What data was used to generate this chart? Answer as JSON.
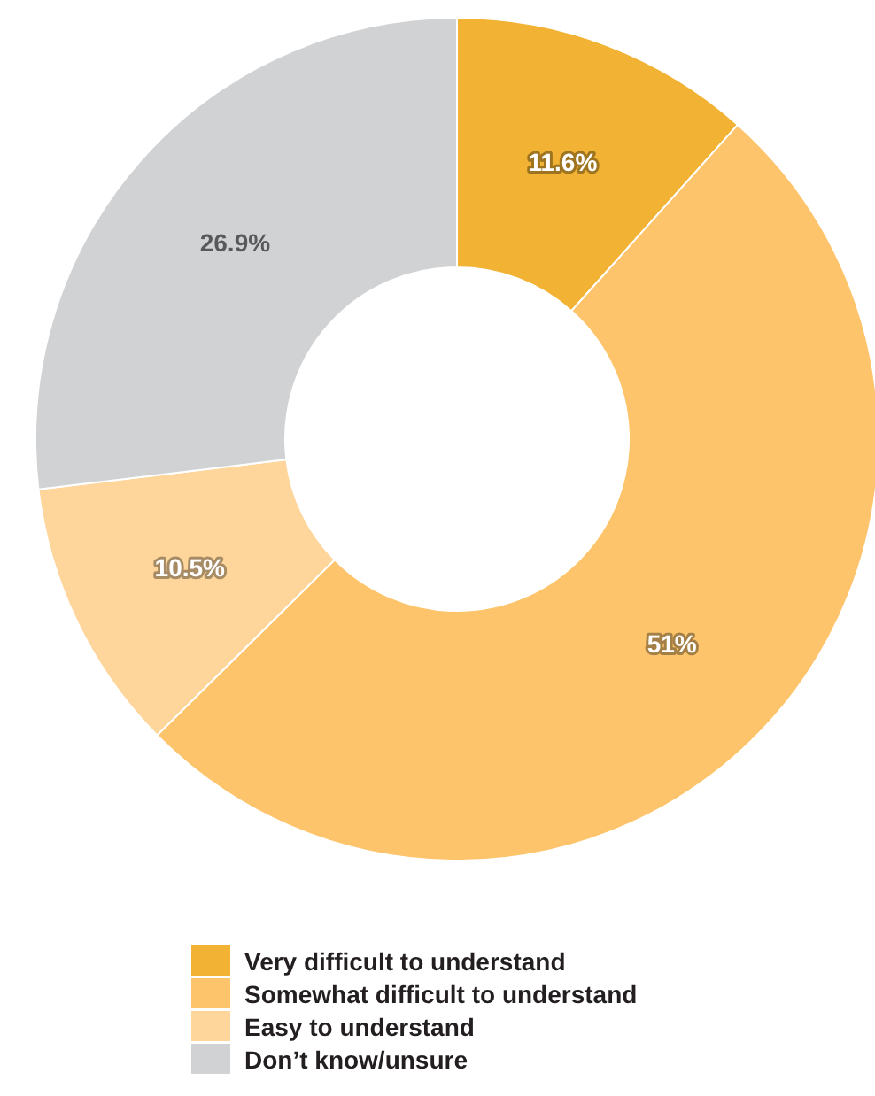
{
  "chart_data": {
    "type": "donut",
    "categories": [
      "Very difficult to understand",
      "Somewhat difficult to understand",
      "Easy to understand",
      "Don’t know/unsure"
    ],
    "values": [
      11.6,
      51,
      10.5,
      26.9
    ],
    "colors": [
      "#f2b233",
      "#fdc46b",
      "#fed59a",
      "#d1d2d4"
    ],
    "value_labels": [
      "11.6%",
      "51%",
      "10.5%",
      "26.9%"
    ],
    "legend": "bottom"
  }
}
